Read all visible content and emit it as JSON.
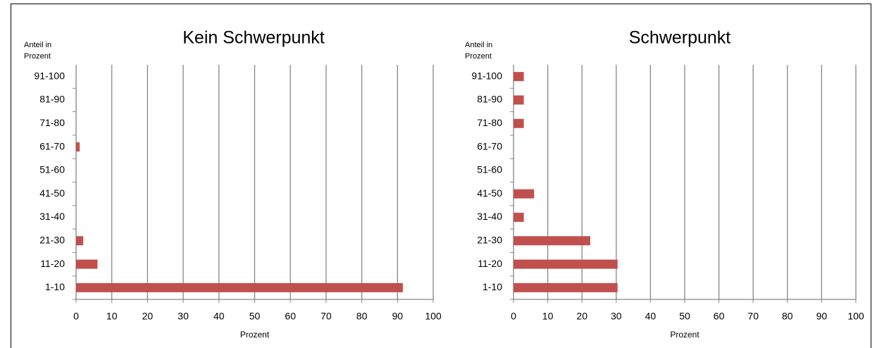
{
  "chart_data": [
    {
      "type": "bar",
      "orientation": "horizontal",
      "title": "Kein Schwerpunkt",
      "y_label": "Anteil in Prozent",
      "x_label": "Prozent",
      "categories": [
        "1-10",
        "11-20",
        "21-30",
        "31-40",
        "41-50",
        "51-60",
        "61-70",
        "71-80",
        "81-90",
        "91-100"
      ],
      "values": [
        91.5,
        6,
        2,
        0,
        0,
        0,
        1,
        0,
        0,
        0
      ],
      "color": "#c0504d",
      "xlim": [
        0,
        100
      ],
      "xticks": [
        0,
        10,
        20,
        30,
        40,
        50,
        60,
        70,
        80,
        90,
        100
      ],
      "grid": true
    },
    {
      "type": "bar",
      "orientation": "horizontal",
      "title": "Schwerpunkt",
      "y_label": "Anteil in Prozent",
      "x_label": "Prozent",
      "categories": [
        "1-10",
        "11-20",
        "21-30",
        "31-40",
        "41-50",
        "51-60",
        "61-70",
        "71-80",
        "81-90",
        "91-100"
      ],
      "values": [
        30.4,
        30.4,
        22.4,
        3,
        6,
        0,
        0,
        3,
        3,
        3
      ],
      "color": "#c0504d",
      "xlim": [
        0,
        100
      ],
      "xticks": [
        0,
        10,
        20,
        30,
        40,
        50,
        60,
        70,
        80,
        90,
        100
      ],
      "grid": true
    }
  ]
}
